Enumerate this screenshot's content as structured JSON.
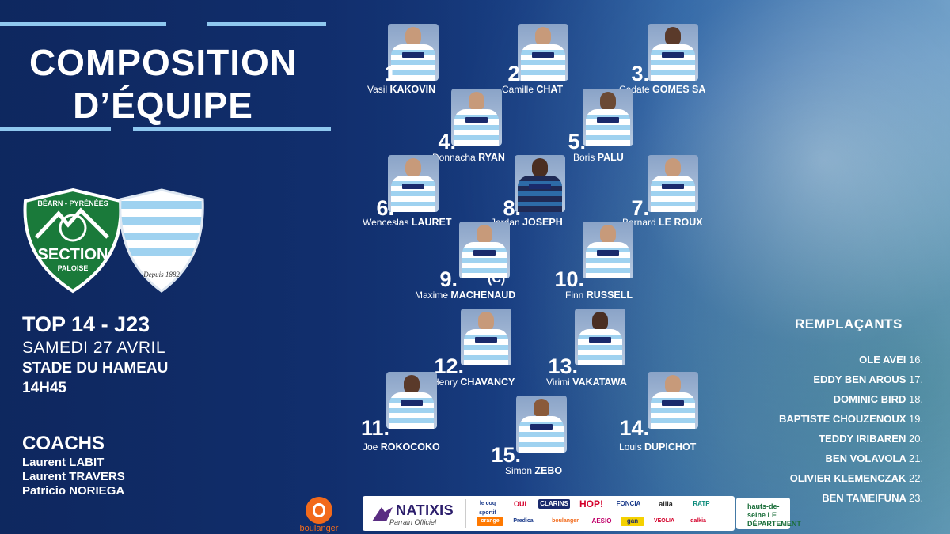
{
  "title": {
    "line1": "COMPOSITION",
    "line2": "D’ÉQUIPE"
  },
  "logos": {
    "pau_top": "BÉARN • PYRÉNÉES",
    "pau_main": "SECTION",
    "pau_sub": "PALOISE",
    "racing_caption": "Depuis 1882"
  },
  "match": {
    "competition": "TOP 14 - J23",
    "date": "SAMEDI 27 AVRIL",
    "venue": "STADE DU HAMEAU",
    "time": "14H45"
  },
  "coachs": {
    "heading": "COACHS",
    "names": [
      "Laurent LABIT",
      "Laurent TRAVERS",
      "Patricio NORIEGA"
    ]
  },
  "players": [
    {
      "number": "1.",
      "first": "Vasil",
      "last": "KAKOVIN"
    },
    {
      "number": "2.",
      "first": "Camille",
      "last": "CHAT"
    },
    {
      "number": "3.",
      "first": "Cedate",
      "last": "GOMES SA"
    },
    {
      "number": "4.",
      "first": "Donnacha",
      "last": "RYAN"
    },
    {
      "number": "5.",
      "first": "Boris",
      "last": "PALU"
    },
    {
      "number": "6.",
      "first": "Wenceslas",
      "last": "LAURET"
    },
    {
      "number": "8.",
      "first": "Jordan",
      "last": "JOSEPH"
    },
    {
      "number": "7.",
      "first": "Bernard",
      "last": "LE ROUX"
    },
    {
      "number": "9.",
      "first": "Maxime",
      "last": "MACHENAUD",
      "captain": "(C)"
    },
    {
      "number": "10.",
      "first": "Finn",
      "last": "RUSSELL"
    },
    {
      "number": "12.",
      "first": "Henry",
      "last": "CHAVANCY"
    },
    {
      "number": "13.",
      "first": "Virimi",
      "last": "VAKATAWA"
    },
    {
      "number": "11.",
      "first": "Joe",
      "last": "ROKOCOKO"
    },
    {
      "number": "15.",
      "first": "Simon",
      "last": "ZEBO"
    },
    {
      "number": "14.",
      "first": "Louis",
      "last": "DUPICHOT"
    }
  ],
  "remplacants": {
    "heading": "REMPLAÇANTS",
    "list": [
      {
        "name": "OLE AVEI",
        "number": "16."
      },
      {
        "name": "EDDY BEN AROUS",
        "number": "17."
      },
      {
        "name": "DOMINIC BIRD",
        "number": "18."
      },
      {
        "name": "BAPTISTE CHOUZENOUX",
        "number": "19."
      },
      {
        "name": "TEDDY IRIBAREN",
        "number": "20."
      },
      {
        "name": "BEN VOLAVOLA",
        "number": "21."
      },
      {
        "name": "OLIVIER KLEMENCZAK",
        "number": "22."
      },
      {
        "name": "BEN TAMEIFUNA",
        "number": "23."
      }
    ]
  },
  "sponsors": {
    "boulanger": "boulanger",
    "natixis": "NATIXIS",
    "natixis_tag": "Parrain Officiel",
    "badges": [
      "le coq sportif",
      "OUI",
      "CLARINS",
      "HOP!",
      "FONCIA",
      "alila",
      "RATP",
      "orange",
      "Predica",
      "boulanger",
      "AESIO",
      "gan",
      "VEOLIA",
      "dalkia"
    ],
    "hauts_de_seine": "hauts-de-seine LE DÉPARTEMENT"
  },
  "colors": {
    "accent_line": "#8fc8ef",
    "background": "#13357a",
    "pau_green": "#1a7a3a"
  }
}
